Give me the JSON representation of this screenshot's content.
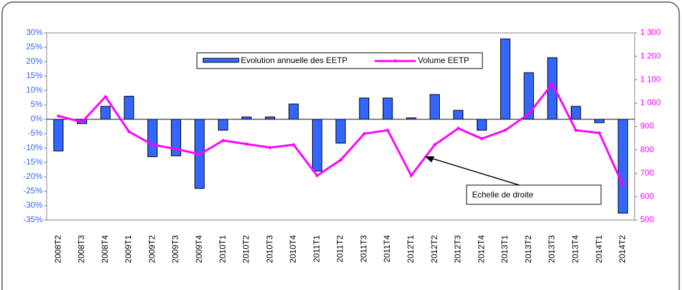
{
  "chart_data": {
    "type": "bar_line",
    "categories": [
      "2008T2",
      "2008T3",
      "2008T4",
      "2009T1",
      "2009T2",
      "2009T3",
      "2009T4",
      "2010T1",
      "2010T2",
      "2010T3",
      "2010T4",
      "2011T1",
      "2011T2",
      "2011T3",
      "2011T4",
      "2012T1",
      "2012T2",
      "2012T3",
      "2012T4",
      "2013T1",
      "2013T2",
      "2013T3",
      "2013T4",
      "2014T1",
      "2014T2"
    ],
    "series": [
      {
        "name": "Evolution annuelle des EETP",
        "type": "bar",
        "color": "#3366ff",
        "axis": "y",
        "values": [
          -11,
          -1.5,
          4.5,
          8,
          -13,
          -12.7,
          -24,
          -3.8,
          0.8,
          0.8,
          5.3,
          -18,
          -8.3,
          7.4,
          7.4,
          0.5,
          8.6,
          3.1,
          -3.8,
          27.9,
          16.2,
          21.4,
          4.5,
          -1.2,
          -32.6
        ]
      },
      {
        "name": "Volume EETP",
        "type": "line",
        "color": "#ff00ff",
        "axis": "y2",
        "values": [
          945,
          919,
          1027,
          878,
          822,
          804,
          781,
          840,
          825,
          810,
          822,
          690,
          757,
          869,
          884,
          690,
          822,
          892,
          848,
          884,
          954,
          1083,
          884,
          872,
          649
        ]
      }
    ],
    "ylim": [
      -35,
      30
    ],
    "yticks": [
      {
        "value": 30,
        "label": "30%"
      },
      {
        "value": 25,
        "label": "25%"
      },
      {
        "value": 20,
        "label": "20%"
      },
      {
        "value": 15,
        "label": "15%"
      },
      {
        "value": 10,
        "label": "10%"
      },
      {
        "value": 5,
        "label": "5%"
      },
      {
        "value": 0,
        "label": "0%"
      },
      {
        "value": -5,
        "label": "-5%"
      },
      {
        "value": -10,
        "label": "-10%"
      },
      {
        "value": -15,
        "label": "-15%"
      },
      {
        "value": -20,
        "label": "-20%"
      },
      {
        "value": -25,
        "label": "-25%"
      },
      {
        "value": -30,
        "label": "-30%"
      },
      {
        "value": -35,
        "label": "-35%"
      }
    ],
    "y2lim": [
      500,
      1300
    ],
    "y2ticks": [
      {
        "value": 1300,
        "label": "1 300"
      },
      {
        "value": 1200,
        "label": "1 200"
      },
      {
        "value": 1100,
        "label": "1 100"
      },
      {
        "value": 1000,
        "label": "1 000"
      },
      900,
      800,
      700,
      600,
      500
    ],
    "annotation": "Echelle de droite"
  }
}
